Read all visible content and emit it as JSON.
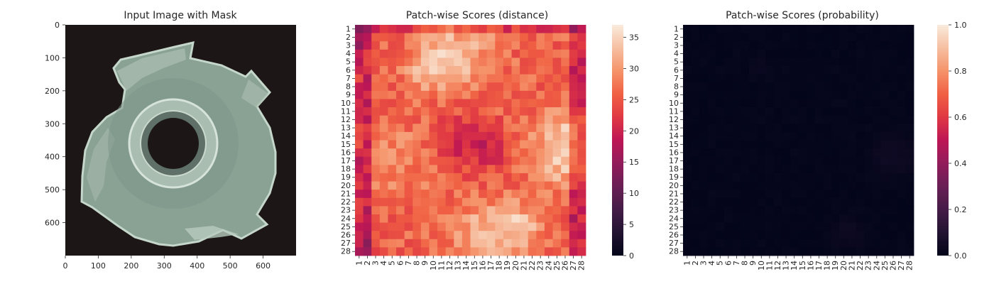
{
  "chart_data": [
    {
      "type": "image",
      "title": "Input Image with Mask",
      "xlim": [
        0,
        700
      ],
      "ylim": [
        700,
        0
      ],
      "x_ticks": [
        "0",
        "100",
        "200",
        "300",
        "400",
        "500",
        "600"
      ],
      "y_ticks": [
        "0",
        "100",
        "200",
        "300",
        "400",
        "500",
        "600"
      ],
      "subject": "metal nut with four tabs on dark background",
      "colors": {
        "background": "#1c1716",
        "metal_light": "#b8cbbd",
        "metal_dark": "#50625a"
      }
    },
    {
      "type": "heatmap",
      "title": "Patch-wise Scores (distance)",
      "rows": 28,
      "cols": 28,
      "x_ticks": [
        "1",
        "2",
        "3",
        "4",
        "5",
        "6",
        "7",
        "8",
        "9",
        "10",
        "11",
        "12",
        "13",
        "14",
        "15",
        "16",
        "17",
        "18",
        "19",
        "20",
        "21",
        "22",
        "23",
        "24",
        "25",
        "26",
        "27",
        "28"
      ],
      "y_ticks": [
        "1",
        "2",
        "3",
        "4",
        "5",
        "6",
        "7",
        "8",
        "9",
        "10",
        "11",
        "12",
        "13",
        "14",
        "15",
        "16",
        "17",
        "18",
        "19",
        "20",
        "21",
        "22",
        "23",
        "24",
        "25",
        "26",
        "27",
        "28"
      ],
      "colorbar": {
        "min": 0,
        "max": 37,
        "ticks": [
          "0",
          "5",
          "10",
          "15",
          "20",
          "25",
          "30",
          "35"
        ],
        "colormap": "rocket"
      },
      "value_range": [
        13,
        36
      ]
    },
    {
      "type": "heatmap",
      "title": "Patch-wise Scores (probability)",
      "rows": 28,
      "cols": 28,
      "x_ticks": [
        "1",
        "2",
        "3",
        "4",
        "5",
        "6",
        "7",
        "8",
        "9",
        "10",
        "11",
        "12",
        "13",
        "14",
        "15",
        "16",
        "17",
        "18",
        "19",
        "20",
        "21",
        "22",
        "23",
        "24",
        "25",
        "26",
        "27",
        "28"
      ],
      "y_ticks": [
        "1",
        "2",
        "3",
        "4",
        "5",
        "6",
        "7",
        "8",
        "9",
        "10",
        "11",
        "12",
        "13",
        "14",
        "15",
        "16",
        "17",
        "18",
        "19",
        "20",
        "21",
        "22",
        "23",
        "24",
        "25",
        "26",
        "27",
        "28"
      ],
      "colorbar": {
        "min": 0,
        "max": 1,
        "ticks": [
          "0.0",
          "0.2",
          "0.4",
          "0.6",
          "0.8",
          "1.0"
        ],
        "colormap": "rocket"
      },
      "value_range": [
        0,
        0.06
      ]
    }
  ]
}
